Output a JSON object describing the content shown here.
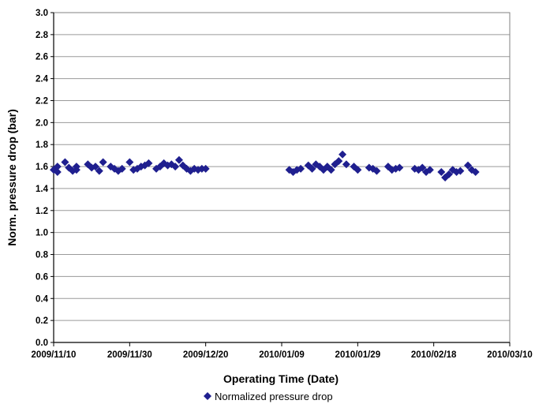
{
  "chart_data": {
    "type": "scatter",
    "xlabel": "Operating Time (Date)",
    "ylabel": "Norm. pressure drop (bar)",
    "xlim": [
      "2009-11-10",
      "2010-03-10"
    ],
    "ylim": [
      0,
      3.0
    ],
    "x_tick_labels": [
      "2009/11/10",
      "2009/11/30",
      "2009/12/20",
      "2010/01/09",
      "2010/01/29",
      "2010/02/18",
      "2010/03/10"
    ],
    "y_tick_labels": [
      "0.0",
      "0.2",
      "0.4",
      "0.6",
      "0.8",
      "1.0",
      "1.2",
      "1.4",
      "1.6",
      "1.8",
      "2.0",
      "2.2",
      "2.4",
      "2.6",
      "2.8",
      "3.0"
    ],
    "grid": "horizontal",
    "legend_position": "bottom",
    "series": [
      {
        "name": "Normalized pressure drop",
        "color": "#1F1F8F",
        "marker": "diamond",
        "points": [
          [
            "2009-11-10",
            1.57
          ],
          [
            "2009-11-11",
            1.6
          ],
          [
            "2009-11-11",
            1.55
          ],
          [
            "2009-11-13",
            1.64
          ],
          [
            "2009-11-14",
            1.59
          ],
          [
            "2009-11-15",
            1.56
          ],
          [
            "2009-11-16",
            1.6
          ],
          [
            "2009-11-16",
            1.57
          ],
          [
            "2009-11-19",
            1.62
          ],
          [
            "2009-11-20",
            1.59
          ],
          [
            "2009-11-21",
            1.6
          ],
          [
            "2009-11-22",
            1.56
          ],
          [
            "2009-11-23",
            1.64
          ],
          [
            "2009-11-25",
            1.6
          ],
          [
            "2009-11-26",
            1.58
          ],
          [
            "2009-11-27",
            1.56
          ],
          [
            "2009-11-28",
            1.58
          ],
          [
            "2009-11-30",
            1.64
          ],
          [
            "2009-12-01",
            1.57
          ],
          [
            "2009-12-02",
            1.58
          ],
          [
            "2009-12-03",
            1.6
          ],
          [
            "2009-12-04",
            1.61
          ],
          [
            "2009-12-05",
            1.63
          ],
          [
            "2009-12-07",
            1.58
          ],
          [
            "2009-12-08",
            1.6
          ],
          [
            "2009-12-09",
            1.63
          ],
          [
            "2009-12-10",
            1.61
          ],
          [
            "2009-12-11",
            1.62
          ],
          [
            "2009-12-12",
            1.6
          ],
          [
            "2009-12-13",
            1.66
          ],
          [
            "2009-12-14",
            1.61
          ],
          [
            "2009-12-15",
            1.58
          ],
          [
            "2009-12-16",
            1.56
          ],
          [
            "2009-12-17",
            1.58
          ],
          [
            "2009-12-18",
            1.57
          ],
          [
            "2009-12-19",
            1.58
          ],
          [
            "2009-12-20",
            1.58
          ],
          [
            "2010-01-11",
            1.57
          ],
          [
            "2010-01-12",
            1.55
          ],
          [
            "2010-01-13",
            1.57
          ],
          [
            "2010-01-14",
            1.58
          ],
          [
            "2010-01-16",
            1.61
          ],
          [
            "2010-01-17",
            1.58
          ],
          [
            "2010-01-18",
            1.62
          ],
          [
            "2010-01-19",
            1.6
          ],
          [
            "2010-01-20",
            1.57
          ],
          [
            "2010-01-21",
            1.6
          ],
          [
            "2010-01-22",
            1.57
          ],
          [
            "2010-01-23",
            1.62
          ],
          [
            "2010-01-24",
            1.65
          ],
          [
            "2010-01-25",
            1.71
          ],
          [
            "2010-01-26",
            1.62
          ],
          [
            "2010-01-28",
            1.6
          ],
          [
            "2010-01-29",
            1.57
          ],
          [
            "2010-02-01",
            1.59
          ],
          [
            "2010-02-02",
            1.58
          ],
          [
            "2010-02-03",
            1.56
          ],
          [
            "2010-02-06",
            1.6
          ],
          [
            "2010-02-07",
            1.57
          ],
          [
            "2010-02-08",
            1.58
          ],
          [
            "2010-02-09",
            1.59
          ],
          [
            "2010-02-13",
            1.58
          ],
          [
            "2010-02-14",
            1.57
          ],
          [
            "2010-02-15",
            1.59
          ],
          [
            "2010-02-16",
            1.55
          ],
          [
            "2010-02-17",
            1.57
          ],
          [
            "2010-02-20",
            1.55
          ],
          [
            "2010-02-21",
            1.5
          ],
          [
            "2010-02-22",
            1.53
          ],
          [
            "2010-02-23",
            1.57
          ],
          [
            "2010-02-24",
            1.55
          ],
          [
            "2010-02-25",
            1.56
          ],
          [
            "2010-02-27",
            1.61
          ],
          [
            "2010-02-28",
            1.57
          ],
          [
            "2010-03-01",
            1.55
          ]
        ]
      }
    ]
  }
}
